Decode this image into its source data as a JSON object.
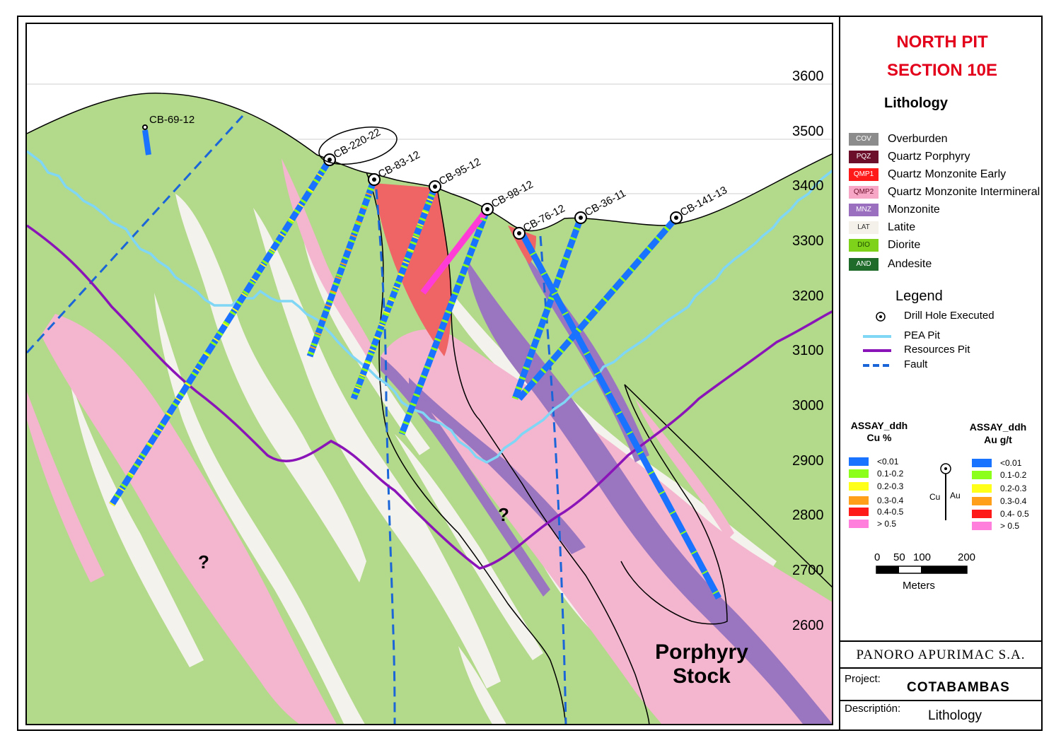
{
  "section": {
    "title_line1": "NORTH PIT",
    "title_line2": "SECTION 10E"
  },
  "elevations": [
    "3600",
    "3500",
    "3400",
    "3300",
    "3200",
    "3100",
    "3000",
    "2900",
    "2800",
    "2700",
    "2600"
  ],
  "drill_holes": [
    "CB-69-12",
    "CB-220-22",
    "CB-83-12",
    "CB-95-12",
    "CB-98-12",
    "CB-76-12",
    "CB-36-11",
    "CB-141-13"
  ],
  "map_labels": {
    "unknown_1": "?",
    "unknown_2": "?",
    "stock_line1": "Porphyry",
    "stock_line2": "Stock"
  },
  "lithology": {
    "heading": "Lithology",
    "items": [
      {
        "code": "COV",
        "label": "Overburden",
        "color": "#8c8c8c"
      },
      {
        "code": "PQZ",
        "label": "Quartz Porphyry",
        "color": "#6b0f2a"
      },
      {
        "code": "QMP1",
        "label": "Quartz Monzonite Early",
        "color": "#ff1a1a"
      },
      {
        "code": "QMP2",
        "label": "Quartz Monzonite Intermineral",
        "color": "#f7a6c6"
      },
      {
        "code": "MNZ",
        "label": "Monzonite",
        "color": "#9b6fc0"
      },
      {
        "code": "LAT",
        "label": "Latite",
        "color": "#f3f1ea"
      },
      {
        "code": "DIO",
        "label": "Diorite",
        "color": "#7fd21a"
      },
      {
        "code": "AND",
        "label": "Andesite",
        "color": "#1e6b2a"
      }
    ]
  },
  "legend": {
    "heading": "Legend",
    "items": [
      {
        "label": "Drill Hole Executed",
        "icon": "drill-hole-icon"
      },
      {
        "label": "PEA Pit",
        "color": "#7fd6f5"
      },
      {
        "label": "Resources Pit",
        "color": "#8a14b8"
      },
      {
        "label": "Fault",
        "color": "#1a66d9"
      }
    ]
  },
  "assay_cu": {
    "heading_line1": "ASSAY_ddh",
    "heading_line2": "Cu %",
    "items": [
      {
        "label": "<0.01",
        "color": "#1a73ff"
      },
      {
        "label": "0.1-0.2",
        "color": "#8cff1a"
      },
      {
        "label": "0.2-0.3",
        "color": "#ffff1a"
      },
      {
        "label": "0.3-0.4",
        "color": "#ff9f1a"
      },
      {
        "label": "0.4-0.5",
        "color": "#ff1a1a"
      },
      {
        "label": "> 0.5",
        "color": "#ff7fdc"
      }
    ]
  },
  "assay_au": {
    "heading_line1": "ASSAY_ddh",
    "heading_line2": "Au g/t",
    "items": [
      {
        "label": "<0.01",
        "color": "#1a73ff"
      },
      {
        "label": "0.1-0.2",
        "color": "#8cff1a"
      },
      {
        "label": "0.2-0.3",
        "color": "#ffff1a"
      },
      {
        "label": "0.3-0.4",
        "color": "#ff9f1a"
      },
      {
        "label": "0.4- 0.5",
        "color": "#ff1a1a"
      },
      {
        "label": "> 0.5",
        "color": "#ff7fdc"
      }
    ]
  },
  "cu_au_symbol": {
    "cu": "Cu",
    "au": "Au"
  },
  "scale": {
    "ticks": [
      "0",
      "50",
      "100",
      "200"
    ],
    "unit": "Meters"
  },
  "footer": {
    "company": "PANORO APURIMAC S.A.",
    "project_key": "Project:",
    "project_value": "COTABAMBAS",
    "description_key": "Descriptión:",
    "description_value": "Lithology"
  }
}
